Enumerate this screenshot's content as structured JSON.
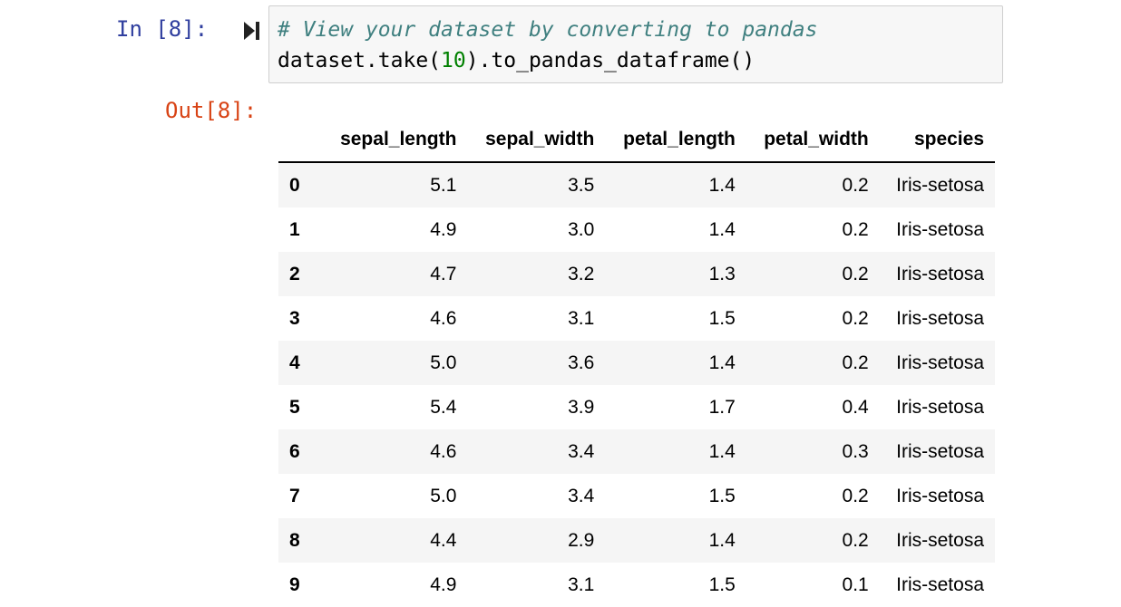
{
  "cell": {
    "in_prompt": "In [8]:",
    "out_prompt": "Out[8]:",
    "run_icon": "step-run-icon",
    "code": {
      "comment": "# View your dataset by converting to pandas",
      "line2_pre": "dataset.take(",
      "line2_num": "10",
      "line2_post": ").to_pandas_dataframe()"
    }
  },
  "colors": {
    "in_prompt": "#303f9f",
    "out_prompt": "#d84315",
    "comment": "#408080",
    "number": "#008000",
    "input_bg": "#f7f7f7",
    "row_stripe": "#f5f5f5"
  },
  "table": {
    "columns": [
      "sepal_length",
      "sepal_width",
      "petal_length",
      "petal_width",
      "species"
    ],
    "rows": [
      {
        "index": "0",
        "values": [
          "5.1",
          "3.5",
          "1.4",
          "0.2",
          "Iris-setosa"
        ]
      },
      {
        "index": "1",
        "values": [
          "4.9",
          "3.0",
          "1.4",
          "0.2",
          "Iris-setosa"
        ]
      },
      {
        "index": "2",
        "values": [
          "4.7",
          "3.2",
          "1.3",
          "0.2",
          "Iris-setosa"
        ]
      },
      {
        "index": "3",
        "values": [
          "4.6",
          "3.1",
          "1.5",
          "0.2",
          "Iris-setosa"
        ]
      },
      {
        "index": "4",
        "values": [
          "5.0",
          "3.6",
          "1.4",
          "0.2",
          "Iris-setosa"
        ]
      },
      {
        "index": "5",
        "values": [
          "5.4",
          "3.9",
          "1.7",
          "0.4",
          "Iris-setosa"
        ]
      },
      {
        "index": "6",
        "values": [
          "4.6",
          "3.4",
          "1.4",
          "0.3",
          "Iris-setosa"
        ]
      },
      {
        "index": "7",
        "values": [
          "5.0",
          "3.4",
          "1.5",
          "0.2",
          "Iris-setosa"
        ]
      },
      {
        "index": "8",
        "values": [
          "4.4",
          "2.9",
          "1.4",
          "0.2",
          "Iris-setosa"
        ]
      },
      {
        "index": "9",
        "values": [
          "4.9",
          "3.1",
          "1.5",
          "0.1",
          "Iris-setosa"
        ]
      }
    ]
  }
}
